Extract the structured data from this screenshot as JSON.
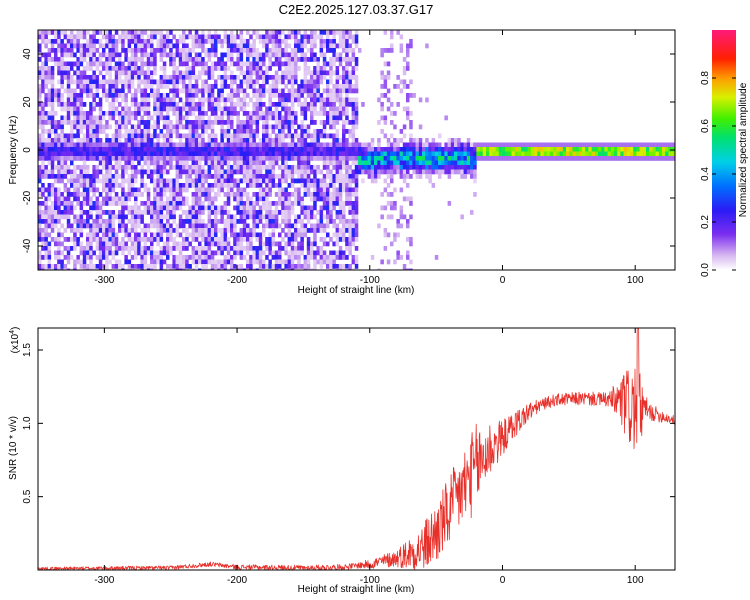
{
  "title": "C2E2.2025.127.03.37.G17",
  "chart_data": [
    {
      "type": "heatmap",
      "name": "spectrogram",
      "xlabel": "Height of straight line (km)",
      "ylabel": "Frequency (Hz)",
      "xlim": [
        -350,
        130
      ],
      "ylim": [
        -50,
        50
      ],
      "xticks": [
        -300,
        -200,
        -100,
        0,
        100
      ],
      "yticks": [
        -40,
        -20,
        0,
        20,
        40
      ],
      "colorbar": {
        "label": "Normalized spectral amplitude",
        "range": [
          0,
          1
        ],
        "ticks": [
          0.0,
          0.2,
          0.4,
          0.6,
          0.8
        ],
        "tick_labels": [
          "0.0",
          "0.2",
          "0.4",
          "0.6",
          "0.8"
        ],
        "colormap": "rainbow (white-purple-blue-cyan-green-yellow-red-magenta)"
      },
      "features": [
        {
          "x_range": [
            -350,
            -110
          ],
          "freq_range": [
            -50,
            50
          ],
          "amplitude": "low (0.05-0.2)",
          "pattern": "noise"
        },
        {
          "x_range": [
            -350,
            -110
          ],
          "freq_center": 0,
          "amplitude": "~0.2",
          "pattern": "weak line"
        },
        {
          "x_range": [
            -110,
            -20
          ],
          "freq_center": -3,
          "amplitude": "0.3-0.6",
          "pattern": "dispersed signal"
        },
        {
          "x_range": [
            -20,
            130
          ],
          "freq_center": 0,
          "amplitude": "0.7-1.0",
          "pattern": "strong narrow line"
        }
      ]
    },
    {
      "type": "line",
      "name": "snr",
      "xlabel": "Height of straight line (km)",
      "ylabel": "SNR (10 * v/v)",
      "yscale_label": "(x10",
      "yscale_exp": "4",
      "xlim": [
        -350,
        130
      ],
      "ylim": [
        0,
        1.65
      ],
      "xticks": [
        -300,
        -200,
        -100,
        0,
        100
      ],
      "yticks": [
        0.5,
        1.0,
        1.5
      ],
      "ytick_labels": [
        "0.5",
        "1.0",
        "1.5"
      ],
      "color": "#e8302a",
      "anchors": [
        {
          "x": -350,
          "y": 0.01
        },
        {
          "x": -250,
          "y": 0.015
        },
        {
          "x": -220,
          "y": 0.04
        },
        {
          "x": -200,
          "y": 0.02
        },
        {
          "x": -150,
          "y": 0.015
        },
        {
          "x": -120,
          "y": 0.02
        },
        {
          "x": -100,
          "y": 0.04
        },
        {
          "x": -80,
          "y": 0.08
        },
        {
          "x": -60,
          "y": 0.15
        },
        {
          "x": -50,
          "y": 0.25
        },
        {
          "x": -40,
          "y": 0.4
        },
        {
          "x": -30,
          "y": 0.55
        },
        {
          "x": -20,
          "y": 0.7
        },
        {
          "x": -10,
          "y": 0.82
        },
        {
          "x": 0,
          "y": 0.9
        },
        {
          "x": 10,
          "y": 1.0
        },
        {
          "x": 20,
          "y": 1.08
        },
        {
          "x": 30,
          "y": 1.13
        },
        {
          "x": 40,
          "y": 1.16
        },
        {
          "x": 60,
          "y": 1.17
        },
        {
          "x": 80,
          "y": 1.16
        },
        {
          "x": 90,
          "y": 1.14
        },
        {
          "x": 100,
          "y": 1.1
        },
        {
          "x": 110,
          "y": 1.08
        },
        {
          "x": 130,
          "y": 1.02
        }
      ],
      "noise_amplitude": [
        {
          "x": -350,
          "amp": 0.01
        },
        {
          "x": -110,
          "amp": 0.02
        },
        {
          "x": -80,
          "amp": 0.06
        },
        {
          "x": -50,
          "amp": 0.22
        },
        {
          "x": -20,
          "amp": 0.3
        },
        {
          "x": 0,
          "amp": 0.12
        },
        {
          "x": 30,
          "amp": 0.04
        },
        {
          "x": 80,
          "amp": 0.05
        },
        {
          "x": 100,
          "amp": 0.35
        },
        {
          "x": 110,
          "amp": 0.06
        },
        {
          "x": 130,
          "amp": 0.03
        }
      ],
      "peak": {
        "x": 102,
        "y": 1.65
      }
    }
  ]
}
